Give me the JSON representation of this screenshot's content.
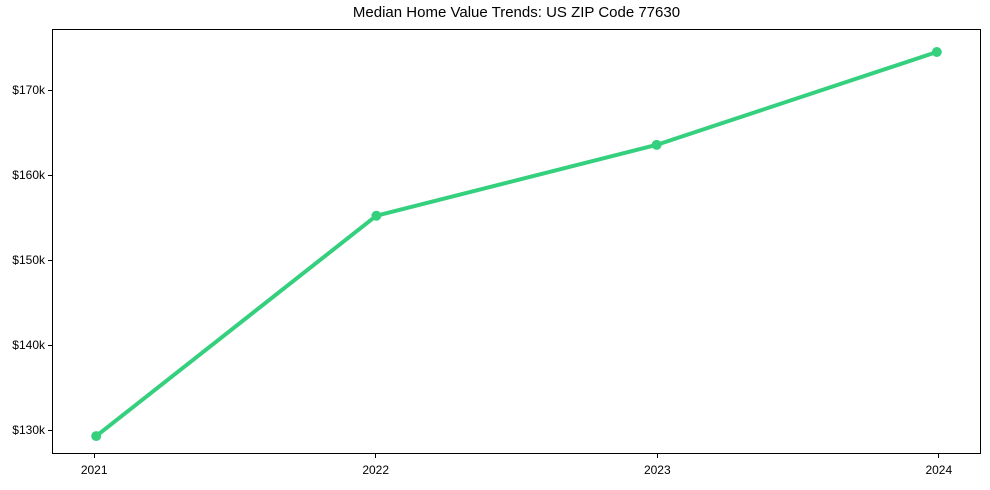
{
  "chart_data": {
    "type": "line",
    "title": "Median Home Value Trends: US ZIP Code 77630",
    "x": [
      2021,
      2022,
      2023,
      2024
    ],
    "values": [
      129200,
      155300,
      163700,
      174700
    ],
    "xlabel": "",
    "ylabel": "",
    "xlim": [
      2020.85,
      2024.15
    ],
    "ylim": [
      127200,
      177300
    ],
    "xticks": {
      "values": [
        2021,
        2022,
        2023,
        2024
      ],
      "labels": [
        "2021",
        "2022",
        "2023",
        "2024"
      ]
    },
    "yticks": {
      "values": [
        130000,
        140000,
        150000,
        160000,
        170000
      ],
      "labels": [
        "$130k",
        "$140k",
        "$150k",
        "$160k",
        "$170k"
      ]
    },
    "grid": false,
    "legend": "none",
    "style": {
      "line_color": "#35d07e",
      "line_width": 4,
      "marker": "circle",
      "marker_radius": 5,
      "axis_color": "#000000",
      "text_color": "#000000",
      "background": "#ffffff"
    }
  }
}
